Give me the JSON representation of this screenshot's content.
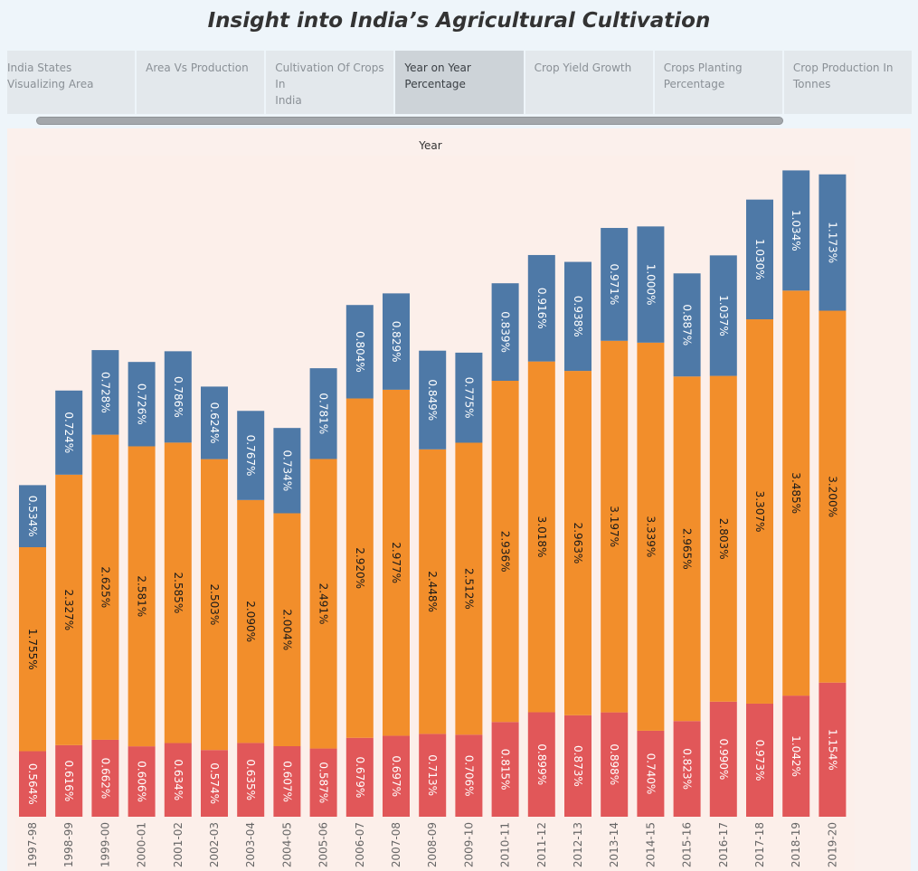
{
  "title": "Insight into India’s Agricultural Cultivation",
  "tabs": [
    {
      "line1": "India States",
      "line2": "Visualizing Area",
      "active": false
    },
    {
      "line1": "Area Vs Production",
      "line2": "",
      "active": false
    },
    {
      "line1": "Cultivation Of Crops In",
      "line2": "India",
      "active": false
    },
    {
      "line1": "Year on Year",
      "line2": "Percentage",
      "active": true
    },
    {
      "line1": "Crop Yield Growth",
      "line2": "",
      "active": false
    },
    {
      "line1": "Crops Planting",
      "line2": "Percentage",
      "active": false
    },
    {
      "line1": "Crop Production In",
      "line2": "Tonnes",
      "active": false
    }
  ],
  "chart_data": {
    "type": "bar",
    "stacked": true,
    "xlabel": "Year",
    "categories": [
      "1997-98",
      "1998-99",
      "1999-00",
      "2000-01",
      "2001-02",
      "2002-03",
      "2003-04",
      "2004-05",
      "2005-06",
      "2006-07",
      "2007-08",
      "2008-09",
      "2009-10",
      "2010-11",
      "2011-12",
      "2012-13",
      "2013-14",
      "2014-15",
      "2015-16",
      "2016-17",
      "2017-18",
      "2018-19",
      "2019-20"
    ],
    "series": [
      {
        "color": "#e15759",
        "values": [
          0.564,
          0.616,
          0.662,
          0.606,
          0.634,
          0.574,
          0.635,
          0.607,
          0.587,
          0.679,
          0.697,
          0.713,
          0.706,
          0.815,
          0.899,
          0.873,
          0.898,
          0.74,
          0.823,
          0.99,
          0.973,
          1.042,
          1.154
        ],
        "labels": [
          "0.564%",
          "0.616%",
          "0.662%",
          "0.606%",
          "0.634%",
          "0.574%",
          "0.635%",
          "0.607%",
          "0.587%",
          "0.679%",
          "0.697%",
          "0.713%",
          "0.706%",
          "0.815%",
          "0.899%",
          "0.873%",
          "0.898%",
          "0.740%",
          "0.823%",
          "0.990%",
          "0.973%",
          "1.042%",
          "1.154%"
        ]
      },
      {
        "color": "#f28e2b",
        "values": [
          1.755,
          2.327,
          2.625,
          2.581,
          2.585,
          2.503,
          2.09,
          2.004,
          2.491,
          2.92,
          2.977,
          2.448,
          2.512,
          2.936,
          3.018,
          2.963,
          3.197,
          3.339,
          2.965,
          2.803,
          3.307,
          3.485,
          3.2
        ],
        "labels": [
          "1.755%",
          "2.327%",
          "2.625%",
          "2.581%",
          "2.585%",
          "2.503%",
          "2.090%",
          "2.004%",
          "2.491%",
          "2.920%",
          "2.977%",
          "2.448%",
          "2.512%",
          "2.936%",
          "3.018%",
          "2.963%",
          "3.197%",
          "3.339%",
          "2.965%",
          "2.803%",
          "3.307%",
          "3.485%",
          "3.200%"
        ]
      },
      {
        "color": "#4e79a7",
        "values": [
          0.534,
          0.724,
          0.728,
          0.726,
          0.786,
          0.624,
          0.767,
          0.734,
          0.781,
          0.804,
          0.829,
          0.849,
          0.775,
          0.839,
          0.916,
          0.938,
          0.971,
          1.0,
          0.887,
          1.037,
          1.03,
          1.034,
          1.173
        ],
        "labels": [
          "0.534%",
          "0.724%",
          "0.728%",
          "0.726%",
          "0.786%",
          "0.624%",
          "0.767%",
          "0.734%",
          "0.781%",
          "0.804%",
          "0.829%",
          "0.849%",
          "0.775%",
          "0.839%",
          "0.916%",
          "0.938%",
          "0.971%",
          "1.000%",
          "0.887%",
          "1.037%",
          "1.030%",
          "1.034%",
          "1.173%"
        ]
      }
    ]
  }
}
